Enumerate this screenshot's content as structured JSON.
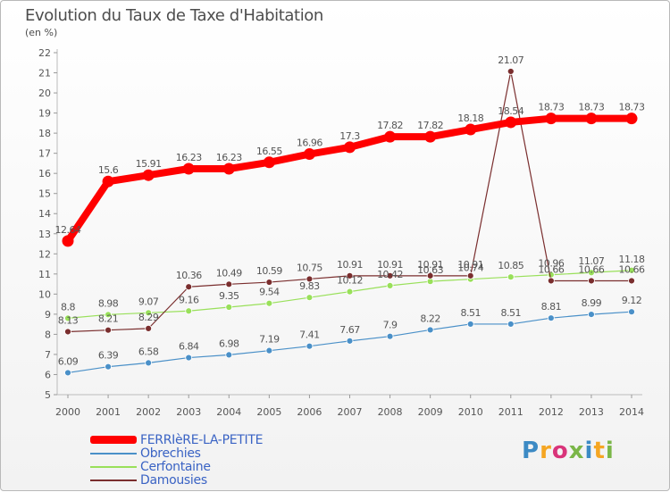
{
  "title": "Evolution du Taux de Taxe d'Habitation",
  "subtitle": "(en %)",
  "logo": {
    "text": "Proxiti",
    "letter_colors": [
      "#3c8ac4",
      "#f5a623",
      "#d9347a",
      "#7ab648",
      "#3c8ac4",
      "#f5a623",
      "#7ab648"
    ]
  },
  "chart_data": {
    "type": "line",
    "title": "Evolution du Taux de Taxe d'Habitation",
    "ylabel": "(en %)",
    "xlabel": "",
    "x": [
      2000,
      2001,
      2002,
      2003,
      2004,
      2005,
      2006,
      2007,
      2008,
      2009,
      2010,
      2011,
      2012,
      2013,
      2014
    ],
    "ylim": [
      5,
      22
    ],
    "yticks": [
      5,
      6,
      7,
      8,
      9,
      10,
      11,
      12,
      13,
      14,
      15,
      16,
      17,
      18,
      19,
      20,
      21,
      22
    ],
    "grid": false,
    "legend_position": "bottom-left",
    "series": [
      {
        "name": "FERRIèRE-LA-PETITE",
        "color": "#ff0000",
        "values": [
          12.64,
          15.6,
          15.91,
          16.23,
          16.23,
          16.55,
          16.96,
          17.3,
          17.82,
          17.82,
          18.18,
          18.54,
          18.73,
          18.73,
          18.73
        ],
        "labels": [
          "12.64",
          "15.6",
          "15.91",
          "16.23",
          "16.23",
          "16.55",
          "16.96",
          "17.3",
          "17.82",
          "17.82",
          "18.18",
          "18.54",
          "18.73",
          "18.73",
          "18.73"
        ]
      },
      {
        "name": "Obrechies",
        "color": "#4a90c8",
        "values": [
          6.09,
          6.39,
          6.58,
          6.84,
          6.98,
          7.19,
          7.41,
          7.67,
          7.9,
          8.22,
          8.51,
          8.51,
          8.81,
          8.99,
          9.12
        ],
        "labels": [
          "6.09",
          "6.39",
          "6.58",
          "6.84",
          "6.98",
          "7.19",
          "7.41",
          "7.67",
          "7.9",
          "8.22",
          "8.51",
          "8.51",
          "8.81",
          "8.99",
          "9.12"
        ]
      },
      {
        "name": "Cerfontaine",
        "color": "#99e05a",
        "values": [
          8.8,
          8.98,
          9.07,
          9.16,
          9.35,
          9.54,
          9.83,
          10.12,
          10.42,
          10.63,
          10.74,
          10.85,
          10.96,
          11.07,
          11.18
        ],
        "labels": [
          "8.8",
          "8.98",
          "9.07",
          "9.16",
          "9.35",
          "9.54",
          "9.83",
          "10.12",
          "10.42",
          "10.63",
          "10.74",
          "10.85",
          "10.96",
          "11.07",
          "11.18"
        ]
      },
      {
        "name": "Damousies",
        "color": "#7a2e2e",
        "values": [
          8.13,
          8.21,
          8.29,
          10.36,
          10.49,
          10.59,
          10.75,
          10.91,
          10.91,
          10.91,
          10.91,
          21.07,
          10.66,
          10.66,
          10.66
        ],
        "labels": [
          "8.13",
          "8.21",
          "8.29",
          "10.36",
          "10.49",
          "10.59",
          "10.75",
          "10.91",
          "10.91",
          "10.91",
          "10.91",
          "21.07",
          "10.66",
          "10.66",
          "10.66"
        ]
      }
    ]
  }
}
